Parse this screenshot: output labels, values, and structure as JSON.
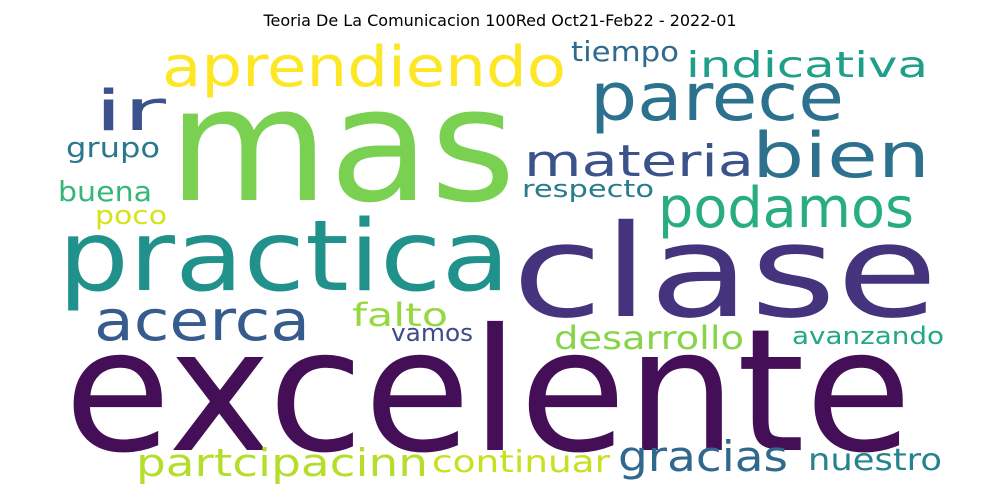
{
  "title": "Teoria De La Comunicacion 100Red Oct21-Feb22 - 2022-01",
  "words": [
    {
      "text": "mas",
      "color": "#7ad151"
    },
    {
      "text": "excelente",
      "color": "#440f56"
    },
    {
      "text": "clase",
      "color": "#46337e"
    },
    {
      "text": "practica",
      "color": "#21918c"
    },
    {
      "text": "aprendiendo",
      "color": "#fde725"
    },
    {
      "text": "parece",
      "color": "#2c728e"
    },
    {
      "text": "bien",
      "color": "#2c728e"
    },
    {
      "text": "podamos",
      "color": "#27ad81"
    },
    {
      "text": "materia",
      "color": "#3b528b"
    },
    {
      "text": "ir",
      "color": "#3b528b"
    },
    {
      "text": "acerca",
      "color": "#365c8d"
    },
    {
      "text": "indicativa",
      "color": "#1f9e89"
    },
    {
      "text": "tiempo",
      "color": "#2f6b8e"
    },
    {
      "text": "grupo",
      "color": "#2a788e"
    },
    {
      "text": "buena",
      "color": "#35b779"
    },
    {
      "text": "poco",
      "color": "#d8e219"
    },
    {
      "text": "respecto",
      "color": "#287c8e"
    },
    {
      "text": "falto",
      "color": "#95d840"
    },
    {
      "text": "vamos",
      "color": "#3e4a89"
    },
    {
      "text": "desarrollo",
      "color": "#86d549"
    },
    {
      "text": "avanzando",
      "color": "#22a884"
    },
    {
      "text": "partcipacinn",
      "color": "#b5de2b"
    },
    {
      "text": "continuar",
      "color": "#c8e020"
    },
    {
      "text": "gracias",
      "color": "#31688e"
    },
    {
      "text": "nuestro",
      "color": "#25838e"
    }
  ]
}
